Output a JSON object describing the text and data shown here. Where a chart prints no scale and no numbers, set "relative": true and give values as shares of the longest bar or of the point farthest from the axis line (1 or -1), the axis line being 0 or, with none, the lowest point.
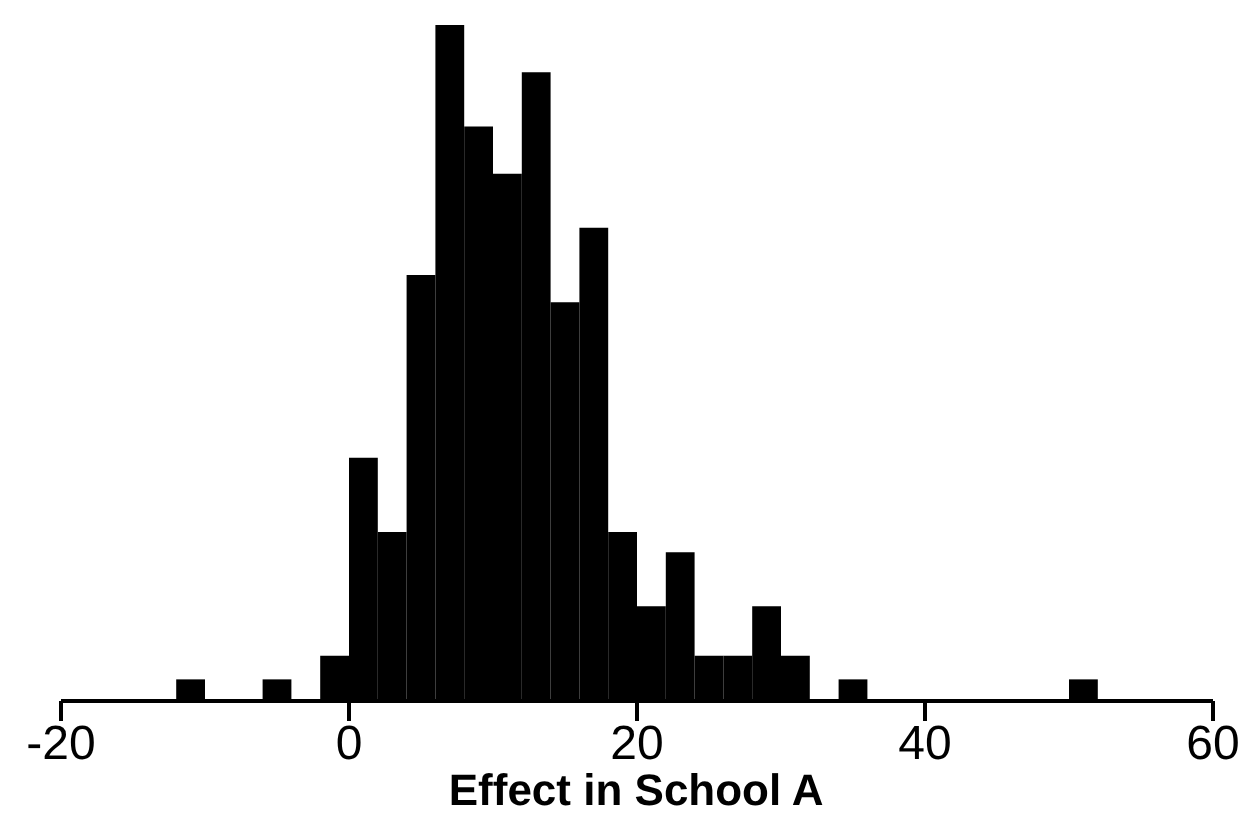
{
  "chart_data": {
    "type": "bar",
    "relative": true,
    "xlabel": "Effect in School A",
    "xlim": [
      -20,
      60
    ],
    "xticks": [
      -20,
      0,
      20,
      40,
      60
    ],
    "color": "#000000",
    "x": [
      -11,
      -5,
      -1,
      1,
      3,
      5,
      7,
      9,
      11,
      13,
      15,
      17,
      19,
      21,
      23,
      25,
      27,
      29,
      31,
      35,
      51
    ],
    "values": [
      0.032,
      0.032,
      0.067,
      0.36,
      0.25,
      0.63,
      1,
      0.85,
      0.78,
      0.93,
      0.59,
      0.7,
      0.25,
      0.14,
      0.22,
      0.067,
      0.067,
      0.14,
      0.067,
      0.032,
      0.032
    ]
  }
}
